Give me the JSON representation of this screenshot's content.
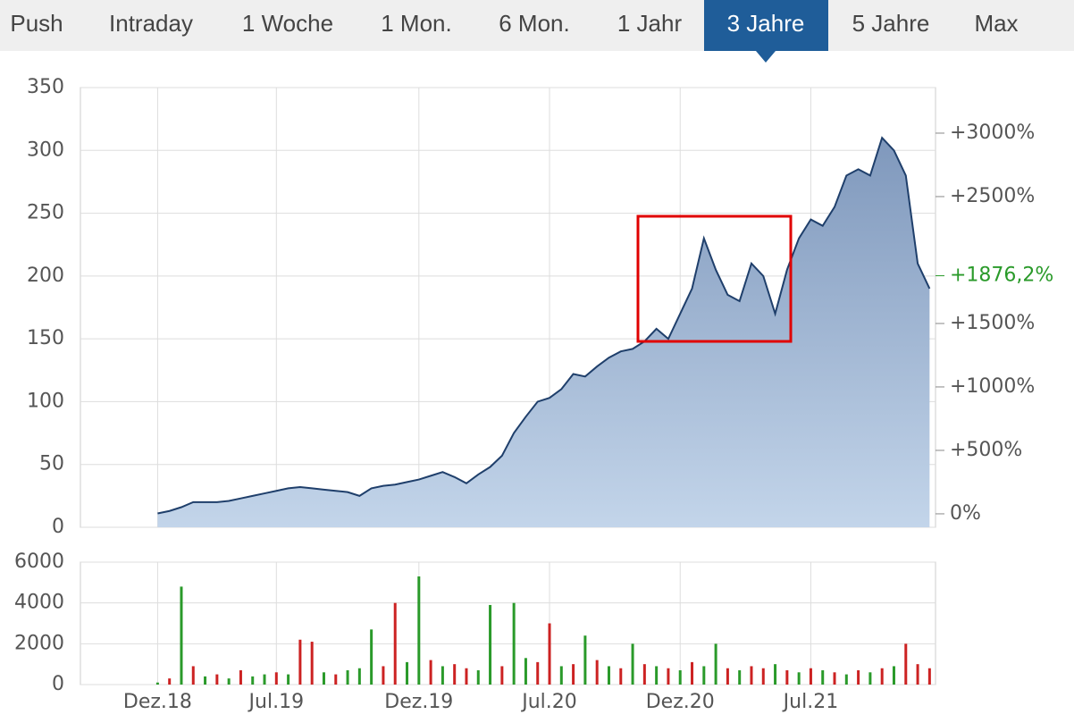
{
  "tabs": {
    "items": [
      "Push",
      "Intraday",
      "1 Woche",
      "1 Mon.",
      "6 Mon.",
      "1 Jahr",
      "3 Jahre",
      "5 Jahre",
      "Max"
    ],
    "active": 6
  },
  "chart_data": [
    {
      "type": "area",
      "series": [
        {
          "color": "#1f3f6b",
          "values": [
            null,
            null,
            null,
            null,
            null,
            null,
            11,
            13,
            16,
            20,
            20,
            20,
            21,
            23,
            25,
            27,
            29,
            31,
            32,
            31,
            30,
            29,
            28,
            25,
            31,
            33,
            34,
            36,
            38,
            41,
            44,
            40,
            35,
            42,
            48,
            57,
            75,
            88,
            100,
            103,
            110,
            122,
            120,
            128,
            135,
            140,
            142,
            148,
            158,
            150,
            170,
            190,
            230,
            205,
            185,
            180,
            210,
            200,
            170,
            205,
            230,
            245,
            240,
            255,
            280,
            285,
            280,
            310,
            300,
            280,
            210,
            190
          ]
        }
      ],
      "ylim": [
        0,
        350
      ],
      "yticks": [
        0,
        50,
        100,
        150,
        200,
        250,
        300,
        350
      ],
      "y2lim": [
        -106,
        3359
      ],
      "y2ticks": [
        {
          "value": 0,
          "label": "0%"
        },
        {
          "value": 500,
          "label": "+500%"
        },
        {
          "value": 1000,
          "label": "+1000%"
        },
        {
          "value": 1500,
          "label": "+1500%"
        },
        {
          "value": 2500,
          "label": "+2500%"
        },
        {
          "value": 3000,
          "label": "+3000%"
        }
      ],
      "current": {
        "value": 1876.2,
        "label": "+1876,2%",
        "color": "#2a9a2a"
      },
      "grid": true
    },
    {
      "type": "bar",
      "categories": [
        null,
        null,
        null,
        null,
        null,
        null,
        "Dez.18",
        null,
        null,
        null,
        null,
        null,
        null,
        null,
        null,
        null,
        "Jul.19",
        null,
        null,
        null,
        null,
        null,
        null,
        null,
        null,
        null,
        null,
        null,
        "Dez.19",
        null,
        null,
        null,
        null,
        null,
        null,
        null,
        null,
        null,
        null,
        "Jul.20",
        null,
        null,
        null,
        null,
        null,
        null,
        null,
        null,
        null,
        null,
        "Dez.20",
        null,
        null,
        null,
        null,
        null,
        null,
        null,
        null,
        null,
        null,
        "Jul.21",
        null,
        null,
        null,
        null,
        null,
        null,
        null,
        null,
        null,
        null
      ],
      "values": [
        null,
        null,
        null,
        null,
        null,
        null,
        100,
        300,
        4800,
        900,
        400,
        500,
        300,
        700,
        400,
        500,
        600,
        500,
        2200,
        2100,
        600,
        500,
        700,
        800,
        2700,
        900,
        4000,
        1100,
        5300,
        1200,
        900,
        1000,
        800,
        700,
        3900,
        900,
        4000,
        1300,
        1100,
        3000,
        900,
        1000,
        2400,
        1200,
        900,
        800,
        2000,
        1000,
        900,
        800,
        700,
        1100,
        900,
        2000,
        800,
        700,
        900,
        800,
        1000,
        700,
        600,
        800,
        700,
        600,
        500,
        700,
        600,
        800,
        900,
        2000,
        1000,
        800
      ],
      "colors": [
        "#2a9a2a",
        "#2a9a2a",
        "#2a9a2a",
        "#2a9a2a",
        "#2a9a2a",
        "#2a9a2a",
        "#2a9a2a",
        "#cc2222",
        "#2a9a2a",
        "#cc2222",
        "#2a9a2a",
        "#cc2222",
        "#2a9a2a",
        "#cc2222",
        "#2a9a2a",
        "#2a9a2a",
        "#cc2222",
        "#2a9a2a",
        "#cc2222",
        "#cc2222",
        "#2a9a2a",
        "#cc2222",
        "#2a9a2a",
        "#2a9a2a",
        "#2a9a2a",
        "#cc2222",
        "#cc2222",
        "#2a9a2a",
        "#2a9a2a",
        "#cc2222",
        "#2a9a2a",
        "#cc2222",
        "#cc2222",
        "#2a9a2a",
        "#2a9a2a",
        "#cc2222",
        "#2a9a2a",
        "#2a9a2a",
        "#cc2222",
        "#cc2222",
        "#2a9a2a",
        "#cc2222",
        "#2a9a2a",
        "#cc2222",
        "#2a9a2a",
        "#cc2222",
        "#2a9a2a",
        "#cc2222",
        "#2a9a2a",
        "#cc2222",
        "#2a9a2a",
        "#cc2222",
        "#2a9a2a",
        "#2a9a2a",
        "#cc2222",
        "#2a9a2a",
        "#cc2222",
        "#cc2222",
        "#2a9a2a",
        "#cc2222",
        "#2a9a2a",
        "#cc2222",
        "#2a9a2a",
        "#cc2222",
        "#2a9a2a",
        "#cc2222",
        "#2a9a2a",
        "#cc2222",
        "#2a9a2a",
        "#cc2222",
        "#cc2222",
        "#cc2222"
      ],
      "ylim": [
        0,
        6000
      ],
      "yticks": [
        0,
        2000,
        4000,
        6000
      ],
      "grid": true
    }
  ]
}
